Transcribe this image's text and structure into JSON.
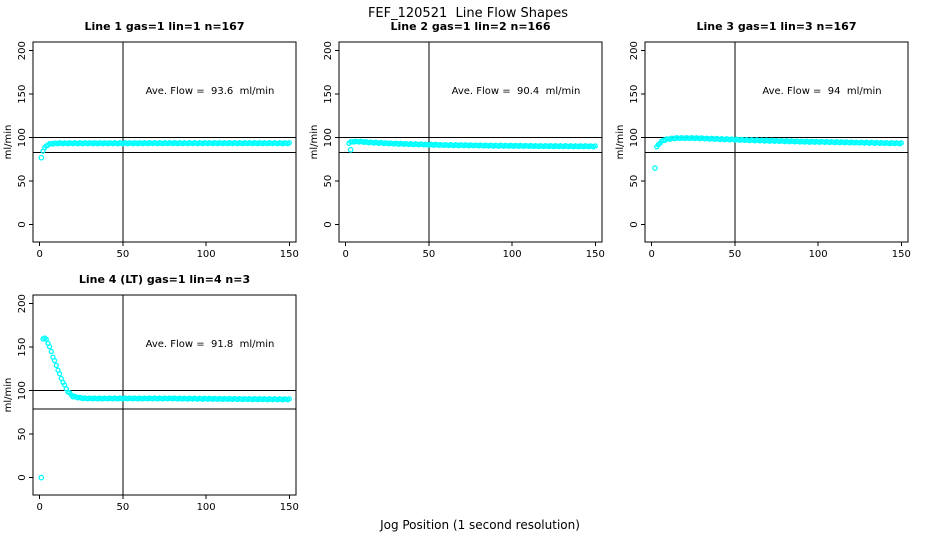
{
  "page": {
    "title": "FEF_120521  Line Flow Shapes",
    "xlabel": "Jog Position (1 second resolution)"
  },
  "chart_data": [
    {
      "type": "scatter",
      "title": "Line 1 gas=1 lin=1 n=167",
      "annotation": "Ave. Flow =  93.6  ml/min",
      "ave_flow_ml_min": 93.6,
      "n": 167,
      "ylabel": "ml/min",
      "xticks": [
        0,
        50,
        100,
        150
      ],
      "yticks": [
        0,
        50,
        100,
        150,
        200
      ],
      "xlim": [
        0,
        150
      ],
      "ylim": [
        0,
        200
      ],
      "marker": "open-circle",
      "marker_color": "#00FFFF",
      "ref_lines": {
        "horizontal": [
          100,
          83
        ],
        "vertical": [
          50
        ]
      },
      "points_outliers": [
        [
          1,
          77
        ]
      ],
      "curve_profile": [
        [
          2,
          85
        ],
        [
          3,
          88
        ],
        [
          4,
          90.5
        ],
        [
          5,
          92
        ],
        [
          7,
          93
        ],
        [
          10,
          93.5
        ],
        [
          20,
          93.6
        ],
        [
          50,
          93.6
        ],
        [
          100,
          93.7
        ],
        [
          150,
          93.6
        ]
      ]
    },
    {
      "type": "scatter",
      "title": "Line 2 gas=1 lin=2 n=166",
      "annotation": "Ave. Flow =  90.4  ml/min",
      "ave_flow_ml_min": 90.4,
      "n": 166,
      "ylabel": "ml/min",
      "xticks": [
        0,
        50,
        100,
        150
      ],
      "yticks": [
        0,
        50,
        100,
        150,
        200
      ],
      "xlim": [
        0,
        150
      ],
      "ylim": [
        0,
        200
      ],
      "marker": "open-circle",
      "marker_color": "#00FFFF",
      "ref_lines": {
        "horizontal": [
          100,
          83
        ],
        "vertical": [
          50
        ]
      },
      "points_outliers": [
        [
          3,
          86
        ]
      ],
      "curve_profile": [
        [
          2,
          94
        ],
        [
          3,
          95
        ],
        [
          5,
          95.5
        ],
        [
          8,
          95.5
        ],
        [
          15,
          94.5
        ],
        [
          25,
          93.5
        ],
        [
          40,
          92.5
        ],
        [
          60,
          91.5
        ],
        [
          90,
          90.8
        ],
        [
          120,
          90.3
        ],
        [
          150,
          90
        ]
      ]
    },
    {
      "type": "scatter",
      "title": "Line 3 gas=1 lin=3 n=167",
      "annotation": "Ave. Flow =  94  ml/min",
      "ave_flow_ml_min": 94,
      "n": 167,
      "ylabel": "ml/min",
      "xticks": [
        0,
        50,
        100,
        150
      ],
      "yticks": [
        0,
        50,
        100,
        150,
        200
      ],
      "xlim": [
        0,
        150
      ],
      "ylim": [
        0,
        200
      ],
      "marker": "open-circle",
      "marker_color": "#00FFFF",
      "ref_lines": {
        "horizontal": [
          100,
          83
        ],
        "vertical": [
          50
        ]
      },
      "points_outliers": [
        [
          2,
          65
        ]
      ],
      "curve_profile": [
        [
          3,
          89
        ],
        [
          4,
          92
        ],
        [
          5,
          94
        ],
        [
          7,
          97
        ],
        [
          10,
          98.5
        ],
        [
          15,
          99.5
        ],
        [
          25,
          99.5
        ],
        [
          40,
          98.5
        ],
        [
          60,
          97
        ],
        [
          90,
          95.5
        ],
        [
          120,
          94.5
        ],
        [
          150,
          93.5
        ]
      ]
    },
    {
      "type": "scatter",
      "title": "Line 4 (LT) gas=1 lin=4 n=3",
      "annotation": "Ave. Flow =  91.8  ml/min",
      "ave_flow_ml_min": 91.8,
      "n": 3,
      "ylabel": "ml/min",
      "xticks": [
        0,
        50,
        100,
        150
      ],
      "yticks": [
        0,
        50,
        100,
        150,
        200
      ],
      "xlim": [
        0,
        150
      ],
      "ylim": [
        0,
        200
      ],
      "marker": "open-circle",
      "marker_color": "#00FFFF",
      "ref_lines": {
        "horizontal": [
          100,
          79
        ],
        "vertical": [
          50
        ]
      },
      "points_outliers": [
        [
          1,
          0
        ]
      ],
      "curve_profile": [
        [
          2,
          160
        ],
        [
          3,
          160
        ],
        [
          4,
          159
        ],
        [
          5,
          155
        ],
        [
          6,
          150
        ],
        [
          7,
          145
        ],
        [
          8,
          139
        ],
        [
          9,
          134
        ],
        [
          10,
          129
        ],
        [
          11,
          124
        ],
        [
          12,
          119
        ],
        [
          13,
          114
        ],
        [
          14,
          110
        ],
        [
          15,
          106
        ],
        [
          16,
          102
        ],
        [
          17,
          99
        ],
        [
          18,
          97
        ],
        [
          19,
          95
        ],
        [
          20,
          93.5
        ],
        [
          22,
          92.5
        ],
        [
          25,
          91.5
        ],
        [
          28,
          91
        ],
        [
          35,
          91
        ],
        [
          50,
          91
        ],
        [
          80,
          91
        ],
        [
          110,
          90.5
        ],
        [
          150,
          90
        ]
      ]
    }
  ]
}
